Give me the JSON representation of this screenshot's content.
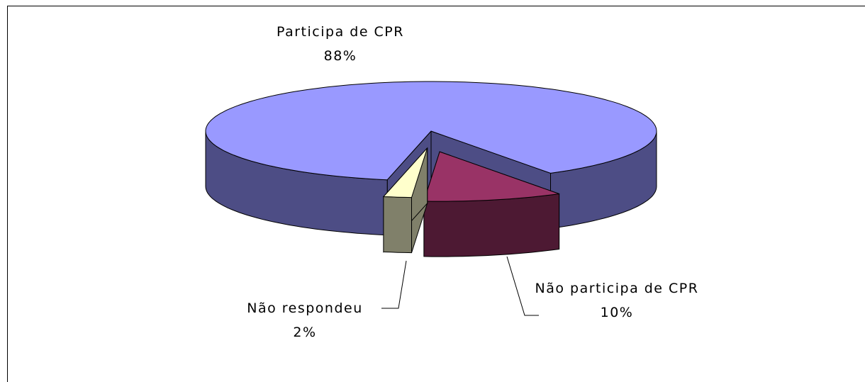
{
  "chart_data": {
    "type": "pie",
    "categories": [
      "Participa de CPR",
      "Não participa de CPR",
      "Não respondeu"
    ],
    "values": [
      88,
      10,
      2
    ],
    "value_labels": [
      "88%",
      "10%",
      "2%"
    ],
    "colors": [
      "#9999ff",
      "#993366",
      "#ffffcc"
    ],
    "side_colors": [
      "#4d4d85",
      "#4d1933",
      "#80806a"
    ]
  }
}
